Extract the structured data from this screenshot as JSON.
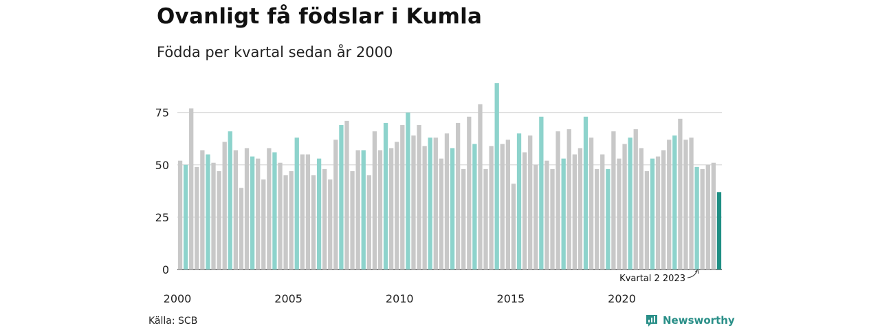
{
  "header": {
    "title": "Ovanligt få födslar i Kumla",
    "subtitle": "Födda per kvartal sedan år 2000"
  },
  "footer": {
    "source": "Källa: SCB",
    "brand": "Newsworthy"
  },
  "colors": {
    "q2": "#8dd3cc",
    "other": "#c8c8c8",
    "current": "#1f8f84",
    "grid": "#d9d9d9",
    "axis": "#333333"
  },
  "chart_data": {
    "type": "bar",
    "title": "Ovanligt få födslar i Kumla",
    "subtitle": "Födda per kvartal sedan år 2000",
    "xlabel": "",
    "ylabel": "",
    "ylim": [
      0,
      90
    ],
    "yticks": [
      0,
      25,
      50,
      75
    ],
    "xticks": [
      "2000",
      "2005",
      "2010",
      "2015",
      "2020"
    ],
    "grid": true,
    "start": "2000 Q1",
    "highlight_quarter": 2,
    "annotation": "Kvartal 2 2023",
    "values": [
      52,
      50,
      77,
      49,
      57,
      55,
      51,
      47,
      61,
      66,
      57,
      39,
      58,
      54,
      53,
      43,
      58,
      56,
      51,
      45,
      47,
      63,
      55,
      55,
      45,
      53,
      48,
      43,
      62,
      69,
      71,
      47,
      57,
      57,
      45,
      66,
      57,
      70,
      58,
      61,
      69,
      75,
      64,
      69,
      59,
      63,
      63,
      53,
      65,
      58,
      70,
      48,
      73,
      60,
      79,
      48,
      59,
      89,
      60,
      62,
      41,
      65,
      56,
      64,
      50,
      73,
      52,
      48,
      66,
      53,
      67,
      55,
      58,
      73,
      63,
      48,
      55,
      48,
      66,
      53,
      60,
      63,
      67,
      58,
      47,
      53,
      54,
      57,
      62,
      64,
      72,
      62,
      63,
      49,
      48,
      50,
      51,
      37
    ]
  }
}
